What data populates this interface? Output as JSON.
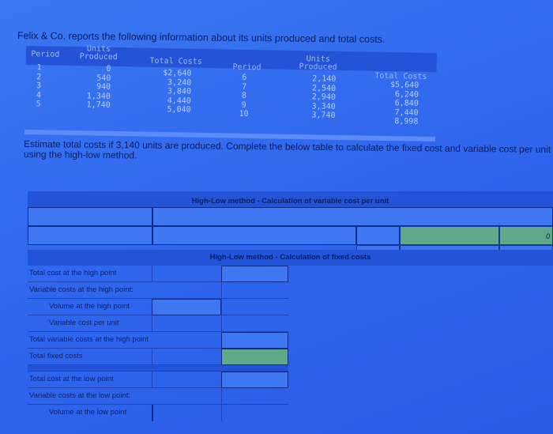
{
  "question": {
    "intro": "Felix & Co. reports the following information about its units produced and total costs.",
    "prompt": "Estimate total costs if 3,140 units are produced. Complete the below table to calculate the fixed cost and variable cost per unit using the high-low method."
  },
  "data_table": {
    "headers": {
      "period": "Period",
      "units_line1": "Units",
      "units_line2": "Produced",
      "total_costs": "Total Costs"
    },
    "left": {
      "periods": [
        "1",
        "2",
        "3",
        "4",
        "5"
      ],
      "units": [
        "0",
        "540",
        "940",
        "1,340",
        "1,740"
      ],
      "costs": [
        "$2,640",
        "3,240",
        "3,840",
        "4,440",
        "5,040"
      ]
    },
    "right": {
      "periods": [
        "6",
        "7",
        "8",
        "9",
        "10"
      ],
      "units": [
        "2,140",
        "2,540",
        "2,940",
        "3,340",
        "3,740"
      ],
      "costs": [
        "$5,640",
        "6,240",
        "6,840",
        "7,440",
        "8,998"
      ]
    }
  },
  "variable_section": {
    "title": "High-Low method - Calculation of variable cost per unit",
    "result_value": "0"
  },
  "fixed_section": {
    "title": "High-Low method - Calculation of fixed costs",
    "rows": [
      "Total cost at the high point",
      "Variable costs at the high point:",
      "Volume at the high point",
      "Variable cost per unit",
      "Total variable costs at the high point",
      "Total fixed costs",
      "",
      "Total cost at the low point",
      "Variable costs at the low point:",
      "Volume at the low point"
    ]
  },
  "colors": {
    "background": "#2f66ee",
    "band": "#2353d6",
    "result_cell": "#5fa88a"
  }
}
